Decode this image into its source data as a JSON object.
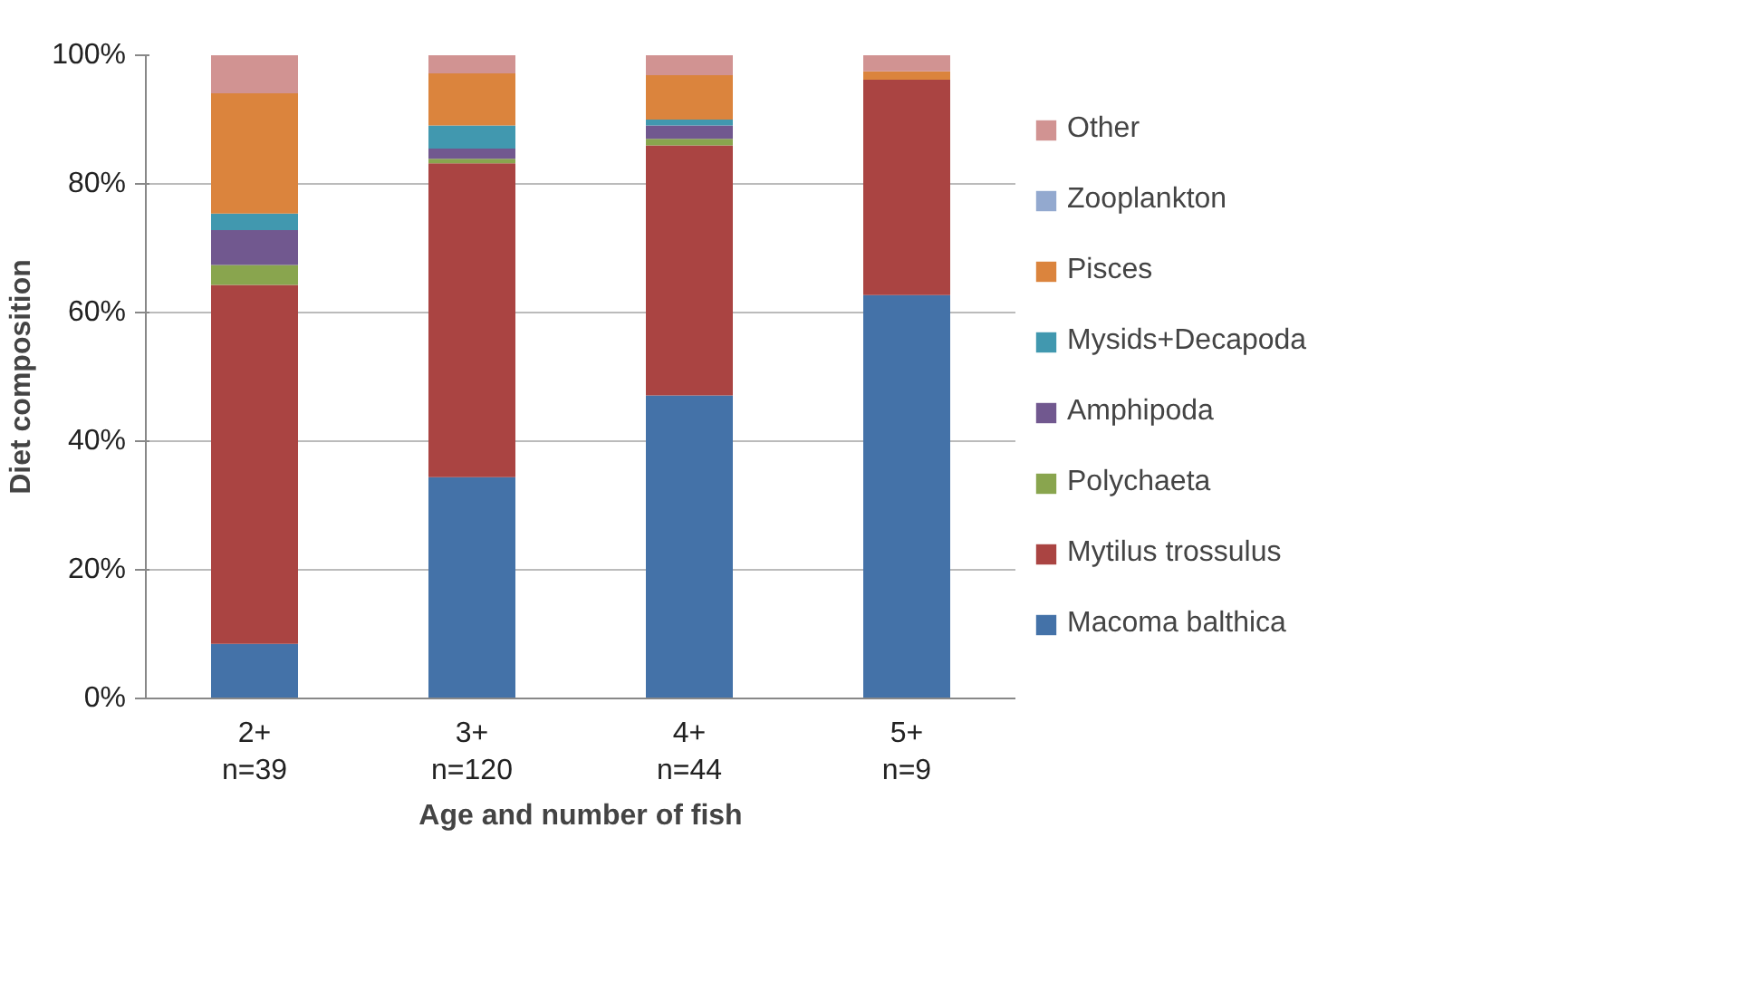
{
  "chart_data": {
    "type": "bar",
    "stacked": true,
    "xlabel": "Age and number of fish",
    "ylabel": "Diet composition",
    "categories": [
      "2+\nn=39",
      "3+\nn=120",
      "4+\nn=44",
      "5+\nn=9"
    ],
    "series": [
      {
        "name": "Macoma balthica",
        "color": "#4472a8",
        "values": [
          8.5,
          34.4,
          47.1,
          62.7
        ]
      },
      {
        "name": "Mytilus trossulus",
        "color": "#aa4442",
        "values": [
          55.8,
          48.8,
          38.9,
          33.5
        ]
      },
      {
        "name": "Polychaeta",
        "color": "#89a54e",
        "values": [
          3.1,
          0.7,
          1.0,
          0
        ]
      },
      {
        "name": "Amphipoda",
        "color": "#71588f",
        "values": [
          5.4,
          1.6,
          2.1,
          0
        ]
      },
      {
        "name": "Mysids+Decapoda",
        "color": "#4198af",
        "values": [
          2.6,
          3.6,
          0.9,
          0
        ]
      },
      {
        "name": "Pisces",
        "color": "#db843d",
        "values": [
          18.7,
          8.1,
          6.9,
          1.3
        ]
      },
      {
        "name": "Zooplankton",
        "color": "#93a9cf",
        "values": [
          0,
          0,
          0,
          0
        ]
      },
      {
        "name": "Other",
        "color": "#d19392",
        "values": [
          5.9,
          2.8,
          3.1,
          2.5
        ]
      }
    ],
    "ylim": [
      0,
      100
    ],
    "yticks": [
      {
        "value": 0,
        "label": "0%"
      },
      {
        "value": 20,
        "label": "20%"
      },
      {
        "value": 40,
        "label": "40%"
      },
      {
        "value": 60,
        "label": "60%"
      },
      {
        "value": 80,
        "label": "80%"
      },
      {
        "value": 100,
        "label": "100%"
      }
    ],
    "grid": "y",
    "legend": "right"
  }
}
